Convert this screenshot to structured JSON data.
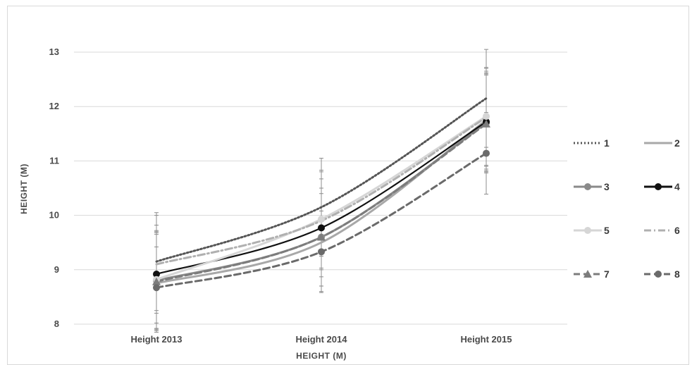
{
  "chart_data": {
    "type": "line",
    "categories": [
      "Height 2013",
      "Height 2014",
      "Height 2015"
    ],
    "ylabel": "HEIGHT (M)",
    "xlabel": "HEIGHT (M)",
    "ylim": [
      8,
      13
    ],
    "yticks": [
      8,
      9,
      10,
      11,
      12,
      13
    ],
    "grid": "horizontal",
    "legend_position": "right",
    "error_bars": true,
    "series": [
      {
        "name": "1",
        "values": [
          9.15,
          10.15,
          12.15
        ],
        "color": "#555555",
        "dash": "dotted",
        "marker": "none",
        "error": [
          0.9,
          0.9,
          0.9
        ]
      },
      {
        "name": "2",
        "values": [
          8.75,
          9.5,
          11.75
        ],
        "color": "#a8a8a8",
        "dash": "solid",
        "marker": "none",
        "error": [
          0.9,
          0.9,
          0.9
        ]
      },
      {
        "name": "3",
        "values": [
          8.8,
          9.6,
          11.7
        ],
        "color": "#8a8a8a",
        "dash": "solid",
        "marker": "circle",
        "error": [
          0.9,
          0.9,
          0.9
        ]
      },
      {
        "name": "4",
        "values": [
          8.92,
          9.77,
          11.72
        ],
        "color": "#111111",
        "dash": "solid",
        "marker": "circle",
        "error": [
          0.9,
          0.9,
          0.9
        ]
      },
      {
        "name": "5",
        "values": [
          8.82,
          9.93,
          11.82
        ],
        "color": "#d6d6d6",
        "dash": "solid",
        "marker": "circle",
        "error": [
          0.9,
          0.9,
          0.9
        ]
      },
      {
        "name": "6",
        "values": [
          9.1,
          9.9,
          11.8
        ],
        "color": "#b0b0b0",
        "dash": "dashdot",
        "marker": "none",
        "error": [
          0.9,
          0.9,
          0.9
        ]
      },
      {
        "name": "7",
        "values": [
          8.78,
          9.6,
          11.68
        ],
        "color": "#7c7c7c",
        "dash": "dashed",
        "marker": "triangle",
        "error": [
          0.9,
          0.9,
          0.9
        ]
      },
      {
        "name": "8",
        "values": [
          8.67,
          9.33,
          11.14
        ],
        "color": "#6a6a6a",
        "dash": "dashed",
        "marker": "circle",
        "error": [
          0.75,
          0.75,
          0.75
        ]
      }
    ]
  }
}
